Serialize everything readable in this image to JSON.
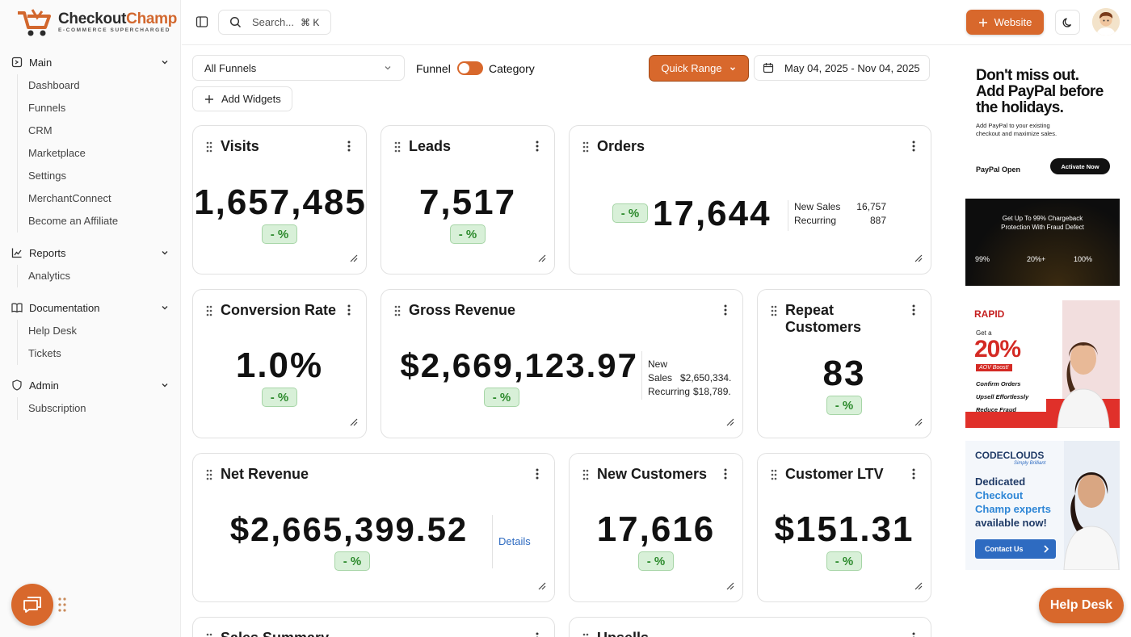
{
  "brand": {
    "name_a": "Checkout",
    "name_b": "Champ",
    "tagline": "E-COMMERCE SUPERCHARGED"
  },
  "colors": {
    "accent": "#d8682c",
    "badge_bg": "#d8f0d8",
    "badge_text": "#2c8a2c",
    "link": "#2e6bc1"
  },
  "sidebar": {
    "groups": [
      {
        "label": "Main",
        "icon": "square-icon",
        "items": [
          "Dashboard",
          "Funnels",
          "CRM",
          "Marketplace",
          "Settings",
          "MerchantConnect",
          "Become an Affiliate"
        ]
      },
      {
        "label": "Reports",
        "icon": "chart-icon",
        "items": [
          "Analytics"
        ]
      },
      {
        "label": "Documentation",
        "icon": "book-icon",
        "items": [
          "Help Desk",
          "Tickets"
        ]
      },
      {
        "label": "Admin",
        "icon": "shield-icon",
        "items": [
          "Subscription"
        ]
      }
    ]
  },
  "header": {
    "search_placeholder": "Search...",
    "shortcut": "⌘ K",
    "website_label": "Website"
  },
  "filters": {
    "funnel_select": "All Funnels",
    "toggle_left": "Funnel",
    "toggle_right": "Category",
    "quick_range": "Quick Range",
    "date_range": "May 04, 2025 - Nov 04, 2025",
    "add_widgets": "Add Widgets"
  },
  "widgets": {
    "visits": {
      "title": "Visits",
      "value": "1,657,485",
      "change": "- %"
    },
    "leads": {
      "title": "Leads",
      "value": "7,517",
      "change": "- %"
    },
    "orders": {
      "title": "Orders",
      "value": "17,644",
      "change": "- %",
      "breakdown": [
        {
          "label": "New Sales",
          "value": "16,757"
        },
        {
          "label": "Recurring",
          "value": "887"
        }
      ]
    },
    "conversion": {
      "title": "Conversion Rate",
      "value": "1.0%",
      "change": "- %"
    },
    "gross": {
      "title": "Gross Revenue",
      "value": "$2,669,123.97",
      "change": "- %",
      "new_label_1": "New",
      "new_label_2": "Sales",
      "new_value": "$2,650,334.",
      "rec_label": "Recurring",
      "rec_value": "$18,789."
    },
    "repeat": {
      "title_1": "Repeat",
      "title_2": "Customers",
      "value": "83",
      "change": "- %"
    },
    "net": {
      "title": "Net Revenue",
      "value": "$2,665,399.52",
      "change": "- %",
      "details": "Details"
    },
    "new_customers": {
      "title": "New Customers",
      "value": "17,616",
      "change": "- %"
    },
    "ltv": {
      "title": "Customer LTV",
      "value": "$151.31",
      "change": "- %"
    },
    "sales_summary": {
      "title": "Sales Summary"
    },
    "upsells": {
      "title": "Upsells"
    }
  },
  "ads": {
    "paypal": {
      "h1": "Don't miss out.",
      "h2": "Add PayPal before",
      "h3": "the holidays.",
      "sub1": "Add PayPal to your existing",
      "sub2": "checkout and maximize sales.",
      "brand": "PayPal Open",
      "cta": "Activate Now"
    },
    "fraud": {
      "line1": "Get Up To 99% Chargeback",
      "line2": "Protection With Fraud Defect",
      "s1": "99%",
      "s2": "20%+",
      "s3": "100%"
    },
    "rapid": {
      "brand": "RAPID",
      "get": "Get a",
      "pct": "20%",
      "boost": "AOV Boost!",
      "b1": "Confirm Orders",
      "b2": "Upsell Effortlessly",
      "b3": "Reduce Fraud"
    },
    "codeclouds": {
      "brand": "CODECLOUDS",
      "tag": "Simply Brilliant",
      "l1": "Dedicated",
      "l2": "Checkout",
      "l3": "Champ experts",
      "l4": "available now!",
      "cta": "Contact Us"
    }
  },
  "help_desk": "Help Desk"
}
